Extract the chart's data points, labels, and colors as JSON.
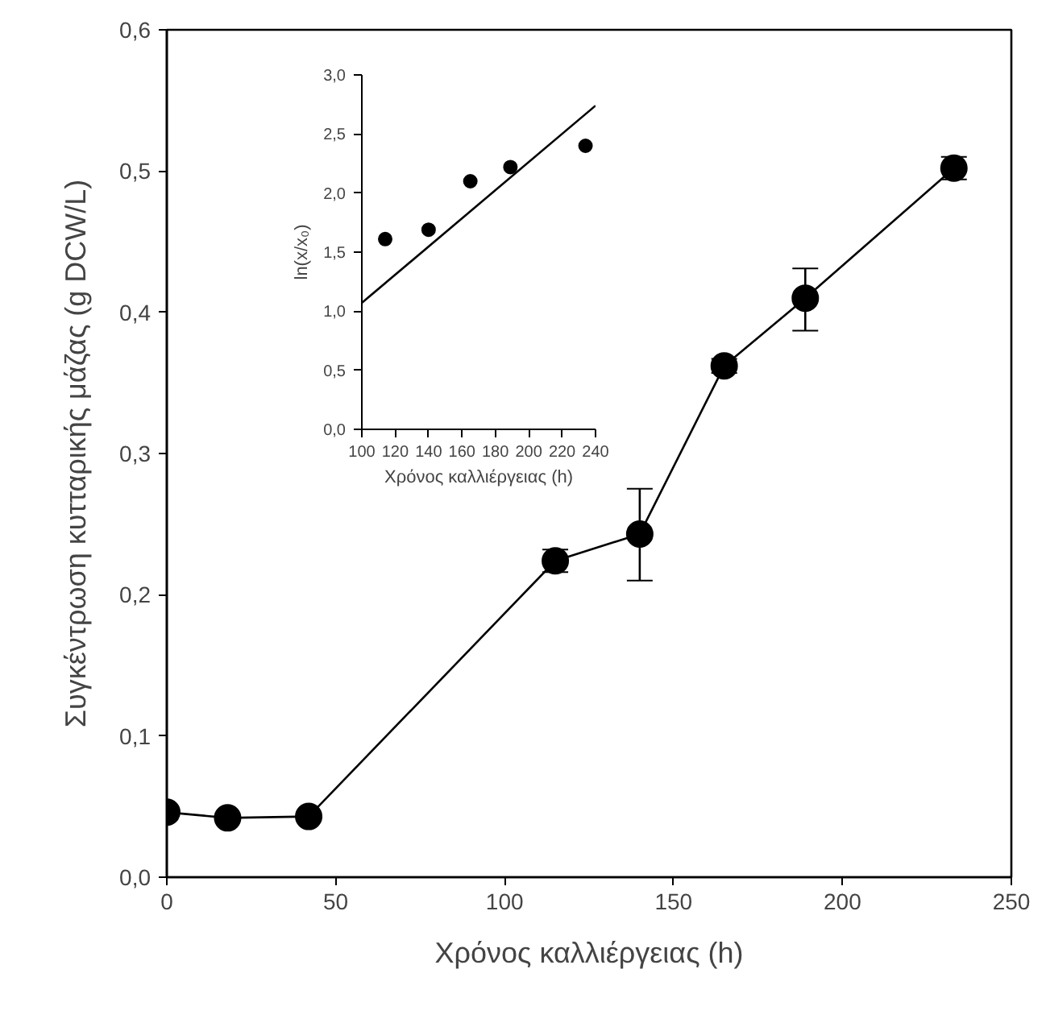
{
  "chart_data": [
    {
      "type": "line",
      "xlabel": "Χρόνος καλλιέργειας (h)",
      "ylabel": "Συγκέντρωση κυτταρικής μάζας (g DCW/L)",
      "x": [
        0,
        18,
        42,
        115,
        140,
        165,
        189,
        233
      ],
      "values": [
        0.046,
        0.042,
        0.043,
        0.224,
        0.243,
        0.362,
        0.41,
        0.502
      ],
      "errors": [
        null,
        null,
        null,
        0.008,
        [
          0.21,
          0.275
        ],
        0.005,
        [
          0.387,
          0.431
        ],
        0.008
      ],
      "color": "#000000",
      "marker": "circle",
      "line_style": "solid",
      "grid": false,
      "xlim": [
        0,
        250
      ],
      "ylim": [
        0,
        0.6
      ],
      "xticks": [
        0,
        50,
        100,
        150,
        200,
        250
      ],
      "yticks": [
        {
          "value": 0,
          "label": "0,0"
        },
        {
          "value": 0.1,
          "label": "0,1"
        },
        {
          "value": 0.2,
          "label": "0,2"
        },
        {
          "value": 0.3,
          "label": "0,3"
        },
        {
          "value": 0.4,
          "label": "0,4"
        },
        {
          "value": 0.5,
          "label": "0,5"
        },
        {
          "value": 0.6,
          "label": "0,6"
        }
      ]
    },
    {
      "type": "scatter",
      "xlabel": "Χρόνος καλλιέργειας (h)",
      "ylabel": "ln(x/x₀)",
      "grid": false,
      "series": [
        {
          "type": "scatter",
          "color": "#000000",
          "marker": "circle",
          "x": [
            114,
            140,
            165,
            189,
            234
          ],
          "values": [
            1.61,
            1.69,
            2.1,
            2.22,
            2.4
          ]
        },
        {
          "type": "line",
          "color": "#000000",
          "marker": "none",
          "line_style": "solid",
          "x": [
            100,
            240
          ],
          "values": [
            1.07,
            2.74
          ]
        }
      ],
      "xlim": [
        100,
        240
      ],
      "ylim": [
        0,
        3
      ],
      "xticks": [
        100,
        120,
        140,
        160,
        180,
        200,
        220,
        240
      ],
      "yticks": [
        {
          "value": 0,
          "label": "0,0"
        },
        {
          "value": 0.5,
          "label": "0,5"
        },
        {
          "value": 1,
          "label": "1,0"
        },
        {
          "value": 1.5,
          "label": "1,5"
        },
        {
          "value": 2,
          "label": "2,0"
        },
        {
          "value": 2.5,
          "label": "2,5"
        },
        {
          "value": 3,
          "label": "3,0"
        }
      ]
    }
  ]
}
